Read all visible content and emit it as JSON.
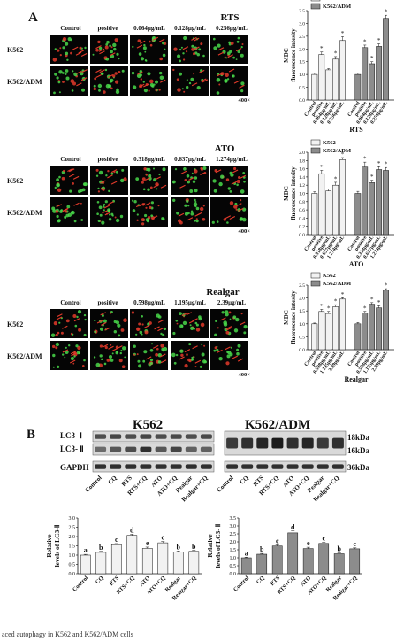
{
  "panel_a": {
    "letter": "A",
    "mag": "400×",
    "rows": [
      "K562",
      "K562/ADM"
    ],
    "micro_colors": {
      "bg": "#050505",
      "green": "#49d84a",
      "red": "#e23a2a"
    },
    "blocks": [
      {
        "title": "RTS",
        "cols": [
          "Control",
          "positive",
          "0.064μg/mL",
          "0.128μg/mL",
          "0.256μg/mL"
        ]
      },
      {
        "title": "ATO",
        "cols": [
          "Control",
          "positive",
          "0.318μg/mL",
          "0.637μg/mL",
          "1.274μg/mL"
        ]
      },
      {
        "title": "Realgar",
        "cols": [
          "Control",
          "positive",
          "0.598μg/mL",
          "1.195μg/mL",
          "2.39μg/mL"
        ]
      }
    ]
  },
  "panel_b": {
    "letter": "B",
    "blot_titles": [
      "K562",
      "K562/ADM"
    ],
    "left_labels": [
      "LC3- Ⅰ",
      "LC3- Ⅱ",
      "GAPDH"
    ],
    "kda_labels": [
      "18kDa",
      "16kDa",
      "36kDa"
    ],
    "lanes": [
      "Control",
      "CQ",
      "RTS",
      "RTS+CQ",
      "ATO",
      "ATO+CQ",
      "Realgar",
      "Realgar+CQ"
    ]
  },
  "caption": "aced autophagy in K562 and K562/ADM cells",
  "chart_data": [
    {
      "type": "bar",
      "legend": [
        "K562",
        "K562/ADM"
      ],
      "colors": {
        "K562": "#f2f2f2",
        "K562/ADM": "#8c8c8c"
      },
      "legend_position": "top-left",
      "ylabel": "MDC fluorescence intesity",
      "xlabel": "RTS",
      "ylim": [
        0,
        3.5
      ],
      "yticks": [
        0,
        0.5,
        1.0,
        1.5,
        2.0,
        2.5,
        3.0,
        3.5
      ],
      "categories": [
        "Control",
        "positive",
        "0.064μg/mL",
        "0.128μg/mL",
        "0.256μg/mL"
      ],
      "series": [
        {
          "name": "K562",
          "values": [
            1.0,
            1.78,
            1.18,
            1.6,
            2.33
          ],
          "errors": [
            0.05,
            0.1,
            0.05,
            0.1,
            0.15
          ],
          "sig": [
            "",
            "*",
            "",
            "*",
            "*"
          ]
        },
        {
          "name": "K562/ADM",
          "values": [
            1.0,
            2.05,
            1.42,
            2.1,
            3.2
          ],
          "errors": [
            0.05,
            0.1,
            0.08,
            0.1,
            0.12
          ],
          "sig": [
            "",
            "*",
            "*",
            "*",
            "*"
          ]
        }
      ]
    },
    {
      "type": "bar",
      "legend": [
        "K562",
        "K562/ADM"
      ],
      "colors": {
        "K562": "#f2f2f2",
        "K562/ADM": "#8c8c8c"
      },
      "legend_position": "top-left",
      "ylabel": "MDC fluorescence intesity",
      "xlabel": "ATO",
      "ylim": [
        0,
        2.0
      ],
      "yticks": [
        0,
        0.2,
        0.4,
        0.6,
        0.8,
        1.0,
        1.2,
        1.4,
        1.6,
        1.8,
        2.0
      ],
      "categories": [
        "Control",
        "positive",
        "0.318μg/mL",
        "0.637μg/mL",
        "1.274μg/mL"
      ],
      "series": [
        {
          "name": "K562",
          "values": [
            1.0,
            1.48,
            1.06,
            1.2,
            1.82
          ],
          "errors": [
            0.04,
            0.08,
            0.05,
            0.07,
            0.05
          ],
          "sig": [
            "",
            "*",
            "",
            "*",
            "*"
          ]
        },
        {
          "name": "K562/ADM",
          "values": [
            1.0,
            1.64,
            1.26,
            1.58,
            1.56
          ],
          "errors": [
            0.05,
            0.12,
            0.06,
            0.07,
            0.07
          ],
          "sig": [
            "",
            "*",
            "*",
            "*",
            "*"
          ]
        }
      ]
    },
    {
      "type": "bar",
      "legend": [
        "K562",
        "K562/ADM"
      ],
      "colors": {
        "K562": "#f2f2f2",
        "K562/ADM": "#8c8c8c"
      },
      "legend_position": "top-left",
      "ylabel": "MDC fluorescence intesity",
      "xlabel": "Realgar",
      "ylim": [
        0,
        2.5
      ],
      "yticks": [
        0,
        0.5,
        1.0,
        1.5,
        2.0,
        2.5
      ],
      "categories": [
        "Control",
        "positive",
        "0.598μg/mL",
        "1.195μg/mL",
        "2.39μg/mL"
      ],
      "series": [
        {
          "name": "K562",
          "values": [
            1.0,
            1.48,
            1.4,
            1.66,
            1.96
          ],
          "errors": [
            0.03,
            0.08,
            0.08,
            0.08,
            0.05
          ],
          "sig": [
            "",
            "*",
            "*",
            "*",
            "*"
          ]
        },
        {
          "name": "K562/ADM",
          "values": [
            1.0,
            1.42,
            1.76,
            1.62,
            2.3
          ],
          "errors": [
            0.05,
            0.06,
            0.06,
            0.08,
            0.06
          ],
          "sig": [
            "",
            "*",
            "*",
            "*",
            "*"
          ]
        }
      ]
    },
    {
      "type": "bar",
      "ylabel": "Relative levels of LC3-Ⅱ",
      "ylim": [
        0,
        3.0
      ],
      "yticks": [
        0,
        0.5,
        1.0,
        1.5,
        2.0,
        2.5,
        3.0
      ],
      "color": "#f2f2f2",
      "categories": [
        "Control",
        "CQ",
        "RTS",
        "RTS+CQ",
        "ATO",
        "ATO+CQ",
        "Realgar",
        "Realgar+CQ"
      ],
      "values": [
        1.0,
        1.15,
        1.56,
        2.06,
        1.36,
        1.66,
        1.16,
        1.2
      ],
      "errors": [
        0.04,
        0.05,
        0.06,
        0.06,
        0.07,
        0.07,
        0.06,
        0.05
      ],
      "letters": [
        "a",
        "b",
        "c",
        "d",
        "e",
        "c",
        "b",
        "b"
      ]
    },
    {
      "type": "bar",
      "ylabel": "Relative levels of LC3- Ⅱ",
      "ylim": [
        0,
        3.5
      ],
      "yticks": [
        0,
        0.5,
        1.0,
        1.5,
        2.0,
        2.5,
        3.0,
        3.5
      ],
      "color": "#8c8c8c",
      "categories": [
        "Control",
        "CQ",
        "RTS",
        "RTS+CQ",
        "ATO",
        "ATO+CQ",
        "Realgar",
        "Realgar+CQ"
      ],
      "values": [
        1.0,
        1.22,
        1.74,
        2.56,
        1.58,
        1.9,
        1.25,
        1.56
      ],
      "errors": [
        0.04,
        0.05,
        0.07,
        0.12,
        0.08,
        0.07,
        0.05,
        0.06
      ],
      "letters": [
        "a",
        "b",
        "c",
        "d",
        "e",
        "c",
        "b",
        "e"
      ]
    }
  ]
}
